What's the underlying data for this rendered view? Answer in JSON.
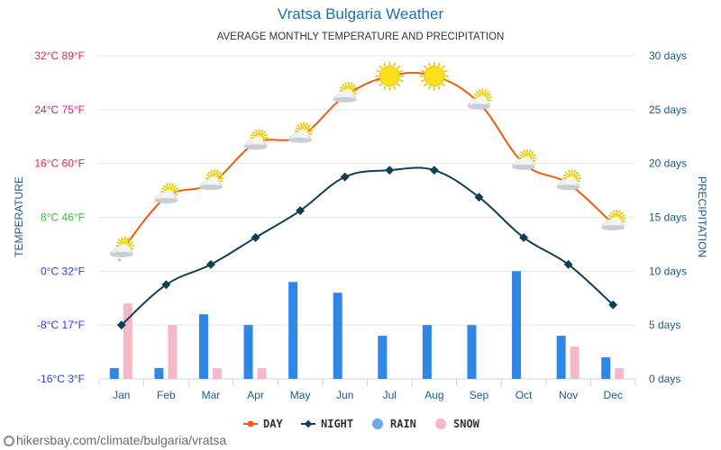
{
  "title": "Vratsa Bulgaria Weather",
  "subtitle": "AVERAGE MONTHLY TEMPERATURE AND PRECIPITATION",
  "source": "hikersbay.com/climate/bulgaria/vratsa",
  "colors": {
    "day": "#f05a11",
    "night": "#0f3f55",
    "rain": "#2f86e6",
    "snow": "#f7b8c6",
    "precip_axis": "#1f5a8a",
    "title": "#1f6fad"
  },
  "chart_data": {
    "type": "line",
    "categories": [
      "Jan",
      "Feb",
      "Mar",
      "Apr",
      "May",
      "Jun",
      "Jul",
      "Aug",
      "Sep",
      "Oct",
      "Nov",
      "Dec"
    ],
    "series": [
      {
        "name": "DAY",
        "axis": "temperature",
        "values": [
          3,
          11,
          13,
          19,
          20,
          26,
          29,
          29,
          25,
          16,
          13,
          7
        ]
      },
      {
        "name": "NIGHT",
        "axis": "temperature",
        "values": [
          -8,
          -2,
          1,
          5,
          9,
          14,
          15,
          15,
          11,
          5,
          1,
          -5
        ]
      },
      {
        "name": "RAIN",
        "axis": "precipitation",
        "type": "bar",
        "values": [
          1,
          1,
          6,
          5,
          9,
          8,
          4,
          5,
          5,
          10,
          4,
          2
        ]
      },
      {
        "name": "SNOW",
        "axis": "precipitation",
        "type": "bar",
        "values": [
          7,
          5,
          1,
          1,
          0,
          0,
          0,
          0,
          0,
          0,
          3,
          1
        ]
      }
    ],
    "day_weather_icons": [
      "snow-cloud-sun-icon",
      "cloud-sun-icon",
      "cloud-sun-icon",
      "cloud-sun-icon",
      "cloud-sun-icon",
      "cloud-sun-icon",
      "sun-icon",
      "sun-icon",
      "cloud-sun-icon",
      "cloud-sun-icon",
      "cloud-sun-icon",
      "cloud-sun-icon"
    ],
    "ylabel": "TEMPERATURE",
    "y2label": "PRECIPITATION",
    "ylim": [
      -16,
      32
    ],
    "y2lim": [
      0,
      30
    ],
    "y_ticks": [
      {
        "value": 32,
        "label": "32°C 89°F",
        "color": "#e0245e"
      },
      {
        "value": 24,
        "label": "24°C 75°F",
        "color": "#e0245e"
      },
      {
        "value": 16,
        "label": "16°C 60°F",
        "color": "#e0245e"
      },
      {
        "value": 8,
        "label": "8°C 46°F",
        "color": "#3db53d"
      },
      {
        "value": 0,
        "label": "0°C 32°F",
        "color": "#2a3fd6"
      },
      {
        "value": -8,
        "label": "-8°C 17°F",
        "color": "#2a3fd6"
      },
      {
        "value": -16,
        "label": "-16°C 3°F",
        "color": "#2a3fd6"
      }
    ],
    "y2_ticks": [
      {
        "value": 30,
        "label": "30 days"
      },
      {
        "value": 25,
        "label": "25 days"
      },
      {
        "value": 20,
        "label": "20 days"
      },
      {
        "value": 15,
        "label": "15 days"
      },
      {
        "value": 10,
        "label": "10 days"
      },
      {
        "value": 5,
        "label": "5 days"
      },
      {
        "value": 0,
        "label": "0 days"
      }
    ],
    "legend": [
      "DAY",
      "NIGHT",
      "RAIN",
      "SNOW"
    ],
    "legend_position": "bottom",
    "grid": true
  }
}
